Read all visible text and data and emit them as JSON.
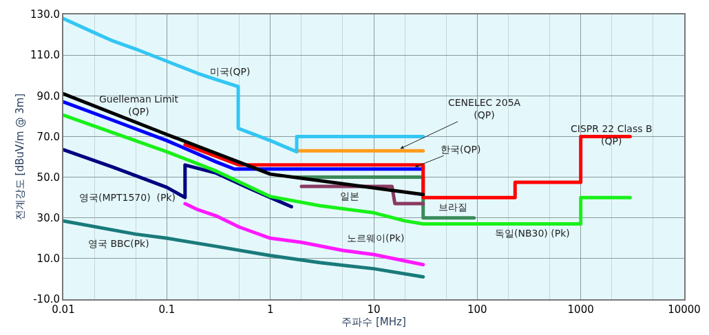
{
  "chart_data": {
    "type": "line",
    "xlabel": "주파수 [MHz]",
    "ylabel": "전계강도 [dBuV/m @ 3m]",
    "log": "x",
    "grid": true,
    "marker": "none",
    "line_style": "solid",
    "xlim": [
      0.01,
      10000
    ],
    "xticks": [
      0.01,
      0.1,
      1,
      10,
      100,
      1000,
      10000
    ],
    "ylim": [
      -10,
      130
    ],
    "yticks": [
      {
        "value": -10,
        "label": "-10.0"
      },
      {
        "value": 10,
        "label": "10.0"
      },
      {
        "value": 30,
        "label": "30.0"
      },
      {
        "value": 50,
        "label": "50.0"
      },
      {
        "value": 70,
        "label": "70.0"
      },
      {
        "value": 90,
        "label": "90.0"
      },
      {
        "value": 110,
        "label": "110.0"
      },
      {
        "value": 130,
        "label": "130.0"
      }
    ],
    "series": [
      {
        "color": "#000080",
        "x": [
          0.01,
          0.03,
          0.1,
          0.15,
          0.15,
          0.3,
          0.6,
          1,
          1.6
        ],
        "values": [
          63.5,
          55,
          45,
          40,
          56,
          52,
          45,
          40,
          35.5
        ]
      },
      {
        "color": "#1a7a7a",
        "x": [
          0.01,
          0.05,
          0.1,
          0.3,
          1,
          3,
          10,
          30
        ],
        "values": [
          28.5,
          22,
          20,
          16,
          11.5,
          8,
          5,
          1
        ]
      },
      {
        "color": "#ff1aff",
        "x": [
          0.15,
          0.2,
          0.3,
          0.5,
          1,
          2,
          5,
          10,
          30
        ],
        "values": [
          37,
          34,
          31,
          25.5,
          20,
          18,
          14,
          12,
          7
        ]
      },
      {
        "color": "#19f019",
        "x": [
          0.01,
          0.1,
          0.3,
          1,
          3,
          10,
          20,
          30,
          1000,
          1000,
          3000
        ],
        "values": [
          80.5,
          62.5,
          53,
          40.5,
          36,
          32.5,
          28.5,
          27,
          27,
          40,
          40
        ]
      },
      {
        "color": "#3a8a5a",
        "x": [
          1.7,
          30,
          30,
          93
        ],
        "values": [
          50,
          50,
          30,
          30
        ]
      },
      {
        "color": "#8b3a62",
        "x": [
          2,
          15,
          16,
          30
        ],
        "values": [
          45.5,
          45.5,
          37,
          37
        ]
      },
      {
        "color": "#0000ff",
        "x": [
          0.01,
          0.03,
          0.1,
          0.3,
          0.45,
          30
        ],
        "values": [
          87,
          78,
          68,
          57.5,
          54,
          54
        ]
      },
      {
        "color": "#ff0000",
        "x": [
          0.15,
          0.5,
          30,
          30,
          232,
          232,
          1000,
          1000,
          3000
        ],
        "values": [
          66,
          56,
          56,
          40,
          40,
          47.5,
          47.5,
          70,
          70
        ]
      },
      {
        "color": "#000000",
        "x": [
          0.01,
          0.1,
          1,
          30
        ],
        "values": [
          91,
          71,
          51.5,
          41.5
        ]
      },
      {
        "color": "#ff9c1a",
        "x": [
          1.8,
          30
        ],
        "values": [
          63,
          63
        ]
      },
      {
        "color": "#33c6f2",
        "x": [
          0.01,
          0.02,
          0.03,
          0.05,
          0.1,
          0.2,
          0.3,
          0.49,
          0.49,
          1,
          1.8,
          1.8,
          30
        ],
        "values": [
          128,
          121,
          117,
          113,
          107,
          101,
          98,
          94.5,
          74,
          68,
          62.5,
          70,
          70
        ]
      }
    ],
    "annotations": [
      {
        "text": "CENELEC 205A\n(QP)",
        "x": 18,
        "y": 64
      },
      {
        "text": "한국(QP)",
        "x": 25,
        "y": 55
      },
      "미국(QP)",
      "Guelleman Limit\n(QP)",
      {
        "text": "CISPR 22 Class B\n(QP)",
        "x": 2000,
        "y": 68
      },
      "영국(MPT1570)  (Pk)",
      "영국 BBC(Pk)",
      "일본",
      "브라질",
      "노르웨이(Pk)",
      "독일(NB30) (Pk)"
    ]
  }
}
